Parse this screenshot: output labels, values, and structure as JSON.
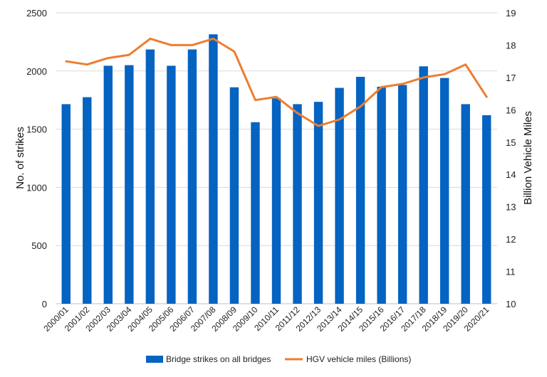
{
  "chart_data": {
    "type": "bar",
    "categories": [
      "2000/01",
      "2001/02",
      "2002/03",
      "2003/04",
      "2004/05",
      "2005/06",
      "2006/07",
      "2007/08",
      "2008/09",
      "2009/10",
      "2010/11",
      "2011/12",
      "2012/13",
      "2013/14",
      "2014/15",
      "2015/16",
      "2016/17",
      "2017/18",
      "2018/19",
      "2019/20",
      "2020/21"
    ],
    "series": [
      {
        "name": "Bridge strikes on all bridges",
        "type": "bar",
        "axis": "left",
        "color": "#0563c1",
        "values": [
          1715,
          1775,
          2045,
          2050,
          2185,
          2045,
          2185,
          2315,
          1860,
          1560,
          1765,
          1715,
          1735,
          1855,
          1950,
          1865,
          1880,
          2040,
          1940,
          1715,
          1620
        ]
      },
      {
        "name": "HGV vehicle miles (Billions)",
        "type": "line",
        "axis": "right",
        "color": "#ed7d31",
        "values": [
          17.5,
          17.4,
          17.6,
          17.7,
          18.2,
          18.0,
          18.0,
          18.2,
          17.8,
          16.3,
          16.4,
          15.9,
          15.5,
          15.7,
          16.1,
          16.7,
          16.8,
          17.0,
          17.1,
          17.4,
          16.4
        ]
      }
    ],
    "ylabel": "No. of strikes",
    "y2label": "Billion Vehicle Miles",
    "ylim": [
      0,
      2500
    ],
    "y2lim": [
      10,
      19
    ],
    "yticks": [
      0,
      500,
      1000,
      1500,
      2000,
      2500
    ],
    "y2ticks": [
      10,
      11,
      12,
      13,
      14,
      15,
      16,
      17,
      18,
      19
    ],
    "grid": true,
    "legend": "bottom"
  }
}
